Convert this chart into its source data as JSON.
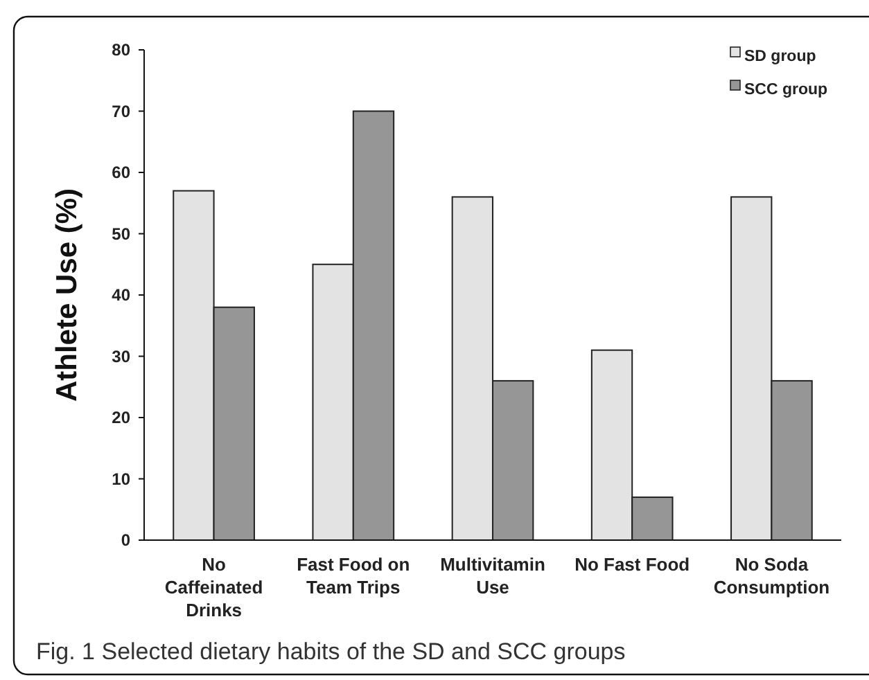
{
  "chart_data": {
    "type": "bar",
    "ylabel": "Athlete Use (%)",
    "categories": [
      "No Caffeinated Drinks",
      "Fast Food on Team Trips",
      "Multivitamin Use",
      "No Fast Food",
      "No Soda Consumption"
    ],
    "series": [
      {
        "name": "SD group",
        "color": "#e3e3e3",
        "values": [
          57,
          45,
          56,
          31,
          56
        ]
      },
      {
        "name": "SCC group",
        "color": "#969696",
        "values": [
          38,
          70,
          26,
          7,
          26
        ]
      }
    ],
    "ylim": [
      0,
      80
    ],
    "yticks": [
      0,
      10,
      20,
      30,
      40,
      50,
      60,
      70,
      80
    ],
    "grid": false,
    "legend": "top right",
    "annotations": [
      "Fig. 1 Selected dietary habits of the SD and SCC groups"
    ]
  }
}
